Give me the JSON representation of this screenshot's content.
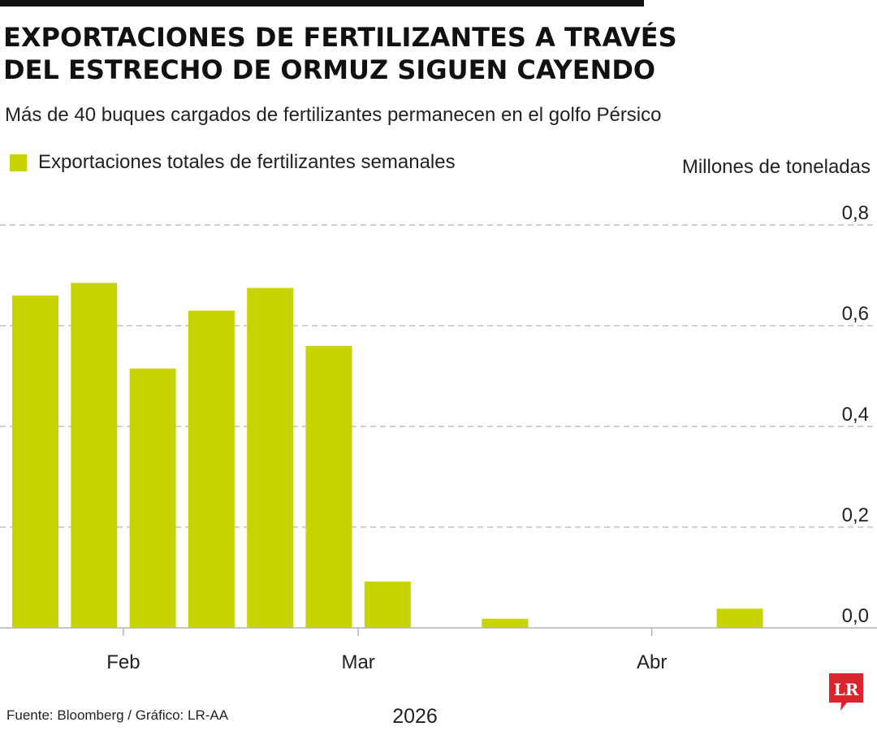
{
  "title_line1": "EXPORTACIONES DE FERTILIZANTES A TRAVÉS",
  "title_line2": "DEL ESTRECHO DE ORMUZ SIGUEN CAYENDO",
  "subtitle": "Más de 40 buques cargados de fertilizantes permanecen en el golfo Pérsico",
  "unit_label": "Millones de toneladas",
  "source": "Fuente: Bloomberg / Gráfico: LR-AA",
  "logo_text": "LR",
  "colors": {
    "bar": "#c8d400",
    "grid": "#b3b3b3",
    "axis": "#b3b3b3",
    "text": "#222222",
    "logo": "#d9232d",
    "rule": "#111111"
  },
  "chart_data": {
    "type": "bar",
    "title": "EXPORTACIONES DE FERTILIZANTES A TRAVÉS DEL ESTRECHO DE ORMUZ SIGUEN CAYENDO",
    "subtitle": "Más de 40 buques cargados de fertilizantes permanecen en el golfo Pérsico",
    "ylabel": "Millones de toneladas",
    "xlabel": "2026",
    "ylim": [
      0,
      0.8
    ],
    "y_ticks": [
      0.0,
      0.2,
      0.4,
      0.6,
      0.8
    ],
    "y_tick_labels": [
      "0,0",
      "0,2",
      "0,4",
      "0,6",
      "0,8"
    ],
    "y_axis_side": "right",
    "grid": true,
    "grid_style": "dashed",
    "legend_position": "top-left",
    "series": [
      {
        "name": "Exportaciones totales de fertilizantes semanales",
        "values": [
          0.66,
          0.685,
          0.515,
          0.63,
          0.675,
          0.56,
          0.092,
          0,
          0.018,
          0,
          0,
          0,
          0.038
        ]
      }
    ],
    "x_ticks": [
      {
        "label": "Feb",
        "index": 1.5
      },
      {
        "label": "Mar",
        "index": 5.5
      },
      {
        "label": "Abr",
        "index": 10.5
      }
    ],
    "year_label": "2026"
  }
}
